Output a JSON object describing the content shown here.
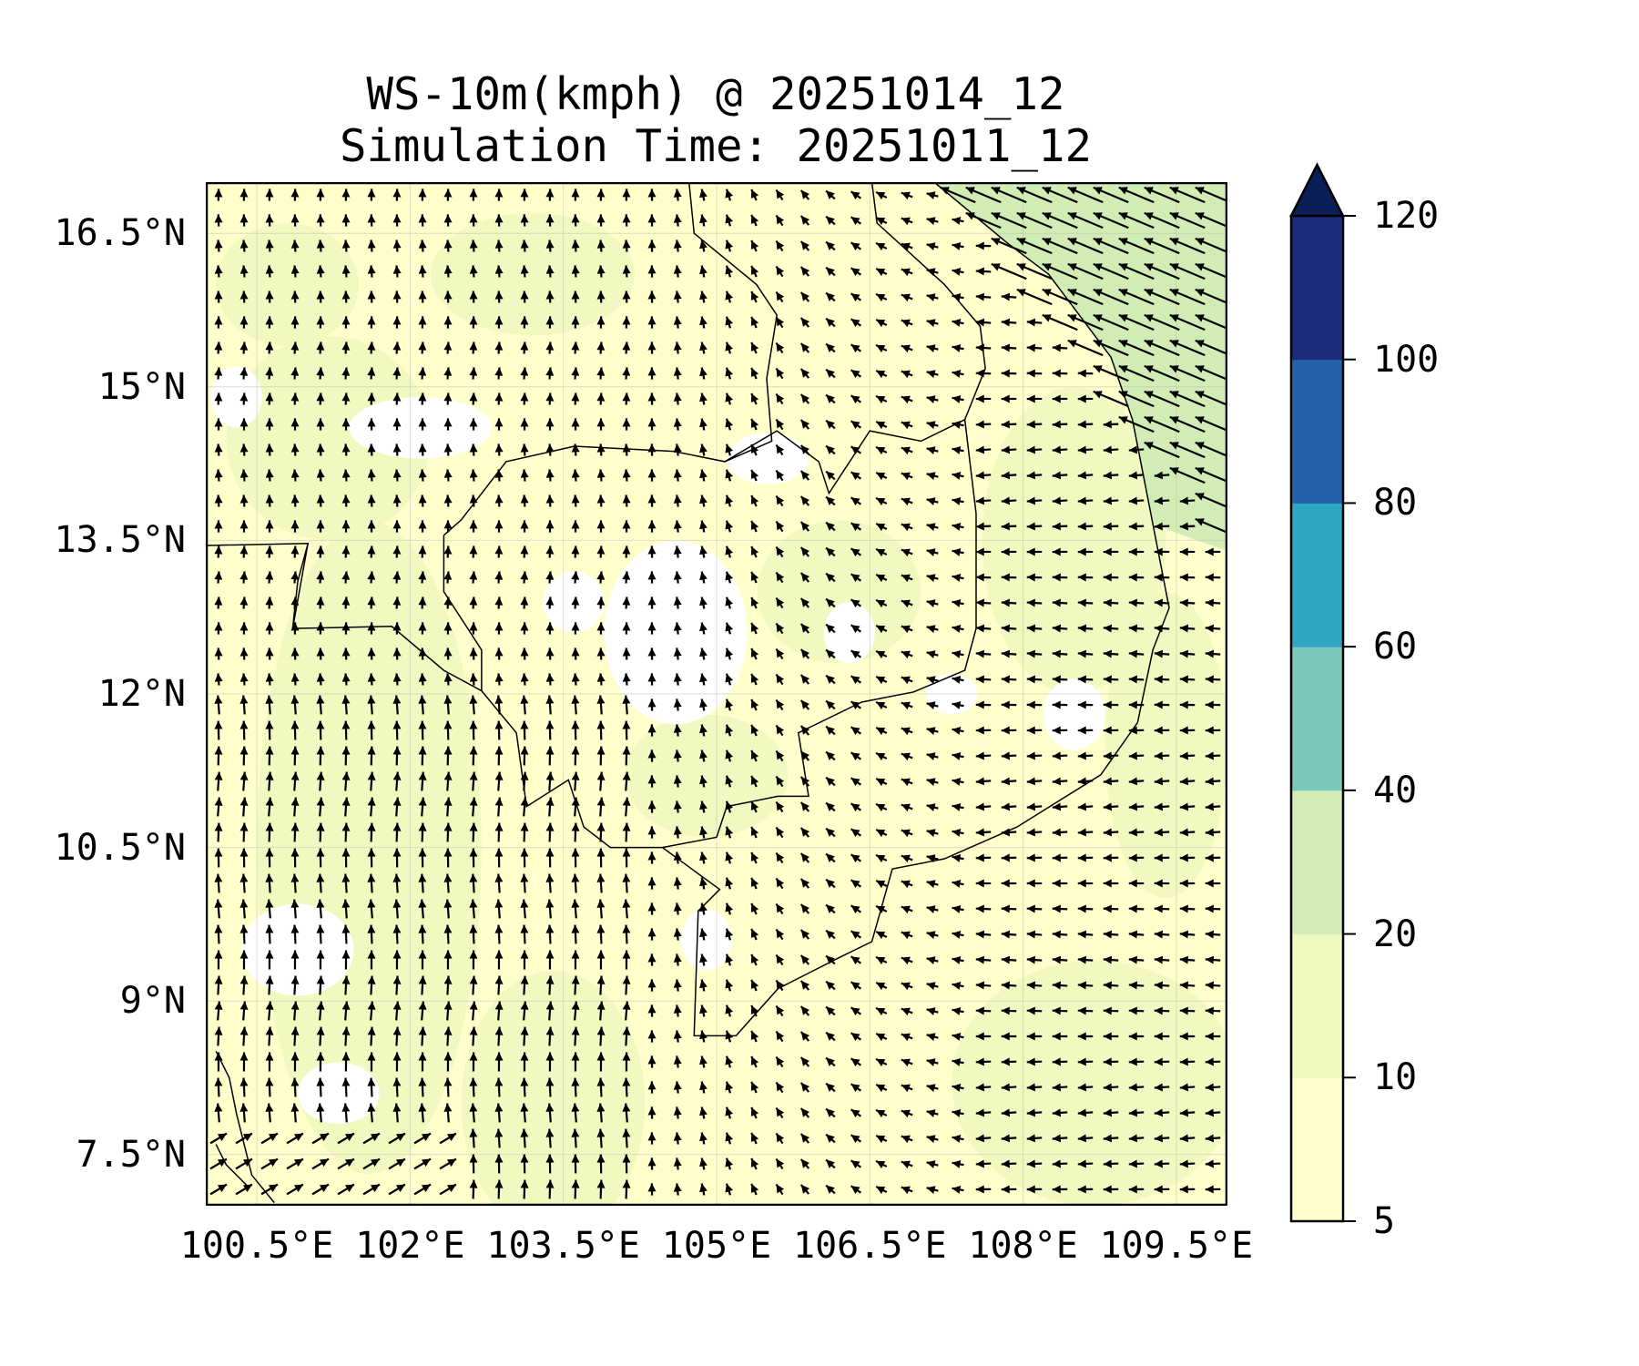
{
  "title": {
    "line1": "WS-10m(kmph) @ 20251014_12",
    "line2": "Simulation Time: 20251011_12"
  },
  "map": {
    "extent_lon": [
      100,
      110
    ],
    "extent_lat": [
      7,
      17
    ],
    "lat_ticks": [
      {
        "value": 16.5,
        "label": "16.5°N"
      },
      {
        "value": 15,
        "label": "15°N"
      },
      {
        "value": 13.5,
        "label": "13.5°N"
      },
      {
        "value": 12,
        "label": "12°N"
      },
      {
        "value": 10.5,
        "label": "10.5°N"
      },
      {
        "value": 9,
        "label": "9°N"
      },
      {
        "value": 7.5,
        "label": "7.5°N"
      }
    ],
    "lon_ticks": [
      {
        "value": 100.5,
        "label": "100.5°E"
      },
      {
        "value": 102,
        "label": "102°E"
      },
      {
        "value": 103.5,
        "label": "103.5°E"
      },
      {
        "value": 105,
        "label": "105°E"
      },
      {
        "value": 106.5,
        "label": "106.5°E"
      },
      {
        "value": 108,
        "label": "108°E"
      },
      {
        "value": 109.5,
        "label": "109.5°E"
      }
    ]
  },
  "colorbar": {
    "levels": [
      5,
      10,
      20,
      40,
      60,
      80,
      100,
      120
    ],
    "labels": [
      "5",
      "10",
      "20",
      "40",
      "60",
      "80",
      "100",
      "120"
    ],
    "colors": [
      "#ffffcc",
      "#f0f8c0",
      "#d1edb5",
      "#7bc9bb",
      "#2ea6c4",
      "#2362a8",
      "#1d2b7c"
    ],
    "extend_color": "#0c1e56",
    "extend": "max"
  }
}
